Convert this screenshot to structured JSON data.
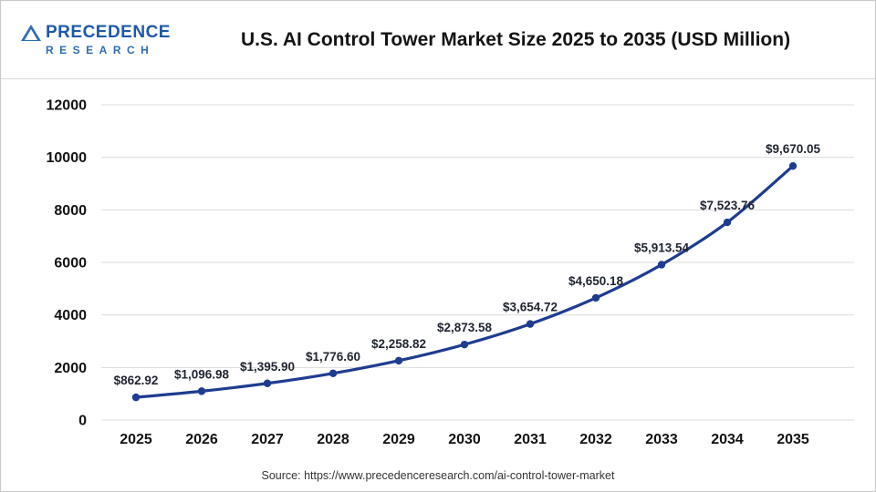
{
  "header": {
    "logo": {
      "primary": "PRECEDENCE",
      "secondary": "RESEARCH"
    },
    "title": "U.S. AI Control Tower Market Size 2025 to 2035 (USD Million)"
  },
  "chart_data": {
    "type": "line",
    "title": "U.S. AI Control Tower Market Size 2025 to 2035 (USD Million)",
    "categories": [
      "2025",
      "2026",
      "2027",
      "2028",
      "2029",
      "2030",
      "2031",
      "2032",
      "2033",
      "2034",
      "2035"
    ],
    "values": [
      862.92,
      1096.98,
      1395.9,
      1776.6,
      2258.82,
      2873.58,
      3654.72,
      4650.18,
      5913.54,
      7523.76,
      9670.05
    ],
    "point_labels": [
      "$862.92",
      "$1,096.98",
      "$1,395.90",
      "$1,776.60",
      "$2,258.82",
      "$2,873.58",
      "$3,654.72",
      "$4,650.18",
      "$5,913.54",
      "$7,523.76",
      "$9,670.05"
    ],
    "xlabel": "",
    "ylabel": "",
    "ylim": [
      0,
      12000
    ],
    "yticks": [
      0,
      2000,
      4000,
      6000,
      8000,
      10000,
      12000
    ],
    "grid": true,
    "legend": "none",
    "line_color": "#1e3c8f",
    "point_color": "#1e3c8f",
    "label_color": "#1f2430",
    "axis_label_color": "#121212",
    "grid_color": "#dcdcdc"
  },
  "footer": {
    "source": "Source: https://www.precedenceresearch.com/ai-control-tower-market"
  }
}
